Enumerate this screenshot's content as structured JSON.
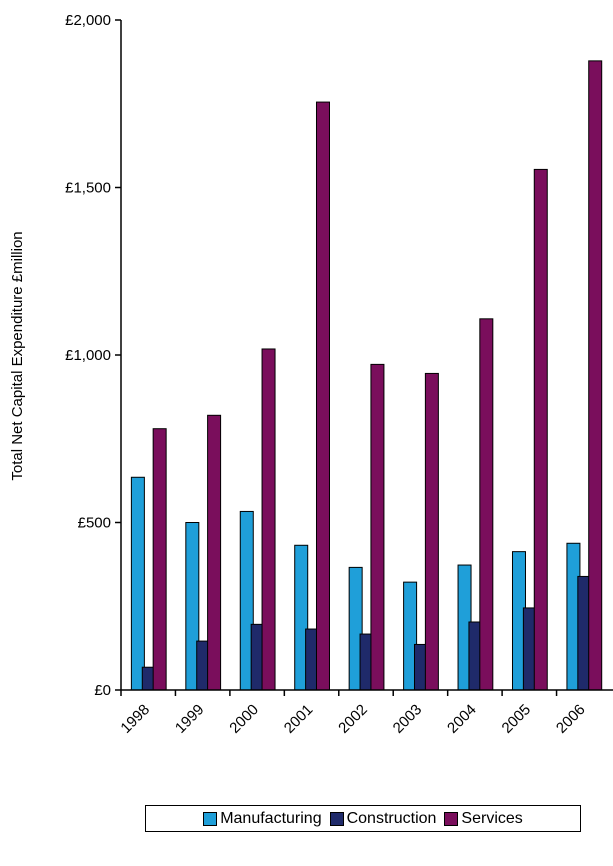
{
  "chart_data": {
    "type": "bar",
    "categories": [
      "1998",
      "1999",
      "2000",
      "2001",
      "2002",
      "2003",
      "2004",
      "2005",
      "2006"
    ],
    "series": [
      {
        "name": "Manufacturing",
        "color": "#1f9fd9",
        "values": [
          635,
          500,
          533,
          432,
          366,
          322,
          373,
          413,
          438
        ]
      },
      {
        "name": "Construction",
        "color": "#1f2a6a",
        "values": [
          68,
          146,
          196,
          182,
          167,
          136,
          203,
          245,
          339
        ]
      },
      {
        "name": "Services",
        "color": "#7a0e5c",
        "values": [
          780,
          820,
          1018,
          1755,
          972,
          945,
          1108,
          1554,
          1878
        ]
      }
    ],
    "ylabel": "Total Net Capital Expenditure £million",
    "ylim": [
      0,
      2000
    ],
    "yticks": [
      "£0",
      "£500",
      "£1,000",
      "£1,500",
      "£2,000"
    ],
    "ytick_values": [
      0,
      500,
      1000,
      1500,
      2000
    ],
    "grid": false,
    "legend_position": "bottom"
  }
}
